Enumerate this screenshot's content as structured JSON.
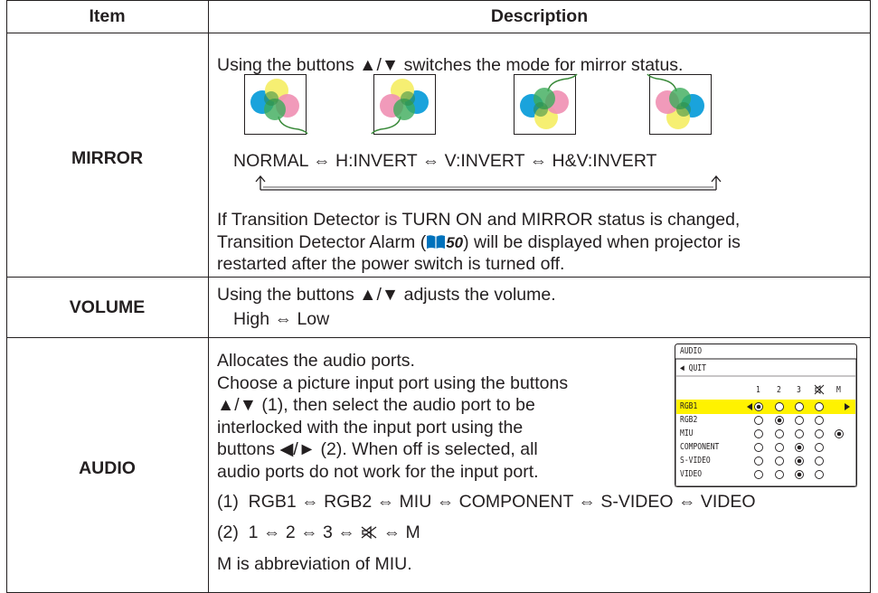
{
  "table": {
    "headers": [
      "Item",
      "Description"
    ],
    "mirror": {
      "item": "MIRROR",
      "intro": "Using the buttons ▲/▼ switches the mode for mirror status.",
      "modes": "NORMAL ⇔ H:INVERT ⇔ V:INVERT ⇔ H&V:INVERT",
      "note_line1": "If Transition Detector is TURN ON and MIRROR status is changed,",
      "note_line2_before": "Transition Detector Alarm (",
      "note_page": "50",
      "note_line2_after": ") will be displayed when projector is",
      "note_line3": "restarted after the power switch is turned off."
    },
    "volume": {
      "item": "VOLUME",
      "intro": "Using the buttons ▲/▼ adjusts the volume.",
      "range": "High ⇔ Low"
    },
    "audio": {
      "item": "AUDIO",
      "lines": [
        "Allocates the audio ports.",
        "Choose a picture input port using the buttons",
        "▲/▼ (1), then select the audio port to be",
        "interlocked with the input port using the",
        "buttons ◀/► (2). When off is selected, all",
        "audio ports do not work for the input port."
      ],
      "sequence1": "(1)  RGB1 ⇔ RGB2 ⇔ MIU ⇔ COMPONENT ⇔ S-VIDEO ⇔ VIDEO",
      "sequence2_before": "(2)  1 ⇔ 2 ⇔ 3 ⇔",
      "sequence2_after": "⇔ M",
      "footnote": "M is abbreviation of MIU.",
      "menu": {
        "title": "AUDIO",
        "quit": "◀ QUIT",
        "columns": [
          "1",
          "2",
          "3",
          "M"
        ],
        "rows": [
          "RGB1",
          "RGB2",
          "MIU",
          "COMPONENT",
          "S-VIDEO",
          "VIDEO"
        ]
      }
    }
  }
}
